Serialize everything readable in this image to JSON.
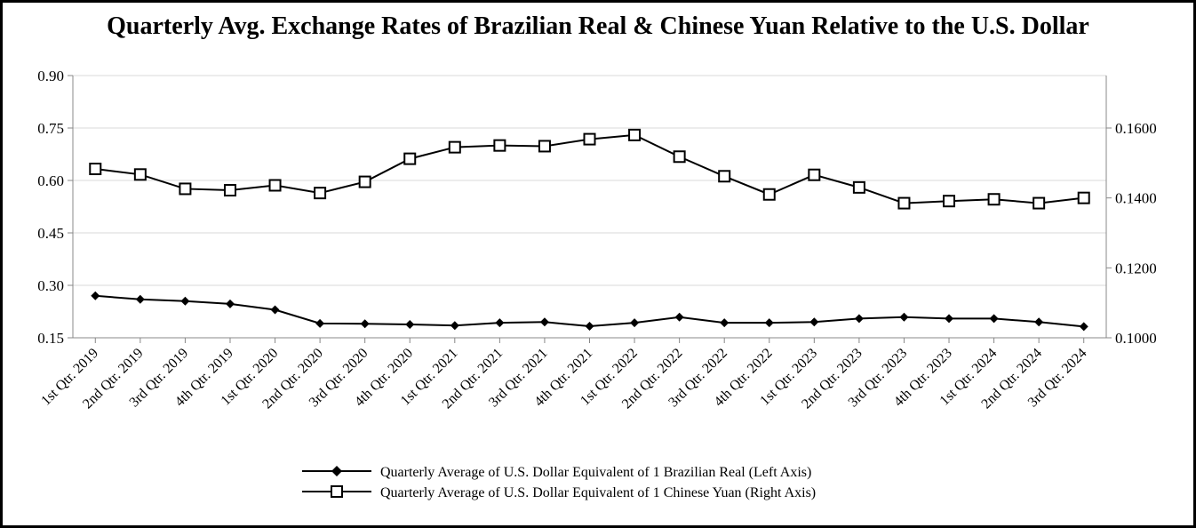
{
  "chart_data": {
    "type": "line",
    "title": "Quarterly Avg. Exchange Rates of Brazilian Real & Chinese Yuan Relative to the U.S. Dollar",
    "categories": [
      "1st Qtr. 2019",
      "2nd Qtr. 2019",
      "3rd Qtr. 2019",
      "4th Qtr. 2019",
      "1st Qtr. 2020",
      "2nd Qtr. 2020",
      "3rd Qtr. 2020",
      "4th Qtr. 2020",
      "1st Qtr. 2021",
      "2nd Qtr. 2021",
      "3rd Qtr. 2021",
      "4th Qtr. 2021",
      "1st Qtr. 2022",
      "2nd Qtr. 2022",
      "3rd Qtr. 2022",
      "4th Qtr. 2022",
      "1st Qtr. 2023",
      "2nd Qtr. 2023",
      "3rd Qtr. 2023",
      "4th Qtr. 2023",
      "1st Qtr. 2024",
      "2nd Qtr. 2024",
      "3rd Qtr. 2024"
    ],
    "left_axis": {
      "ylim": [
        0.15,
        0.9
      ],
      "ticks": [
        "0.15",
        "0.30",
        "0.45",
        "0.60",
        "0.75",
        "0.90"
      ]
    },
    "right_axis": {
      "ylim": [
        0.1,
        0.175
      ],
      "ticks": [
        "0.1000",
        "0.1200",
        "0.1400",
        "0.1600"
      ]
    },
    "series": [
      {
        "name": "Quarterly Average of U.S. Dollar Equivalent of 1 Brazilian Real (Left Axis)",
        "axis": "left",
        "marker": "diamond",
        "values": [
          0.27,
          0.26,
          0.255,
          0.247,
          0.23,
          0.191,
          0.19,
          0.188,
          0.185,
          0.193,
          0.195,
          0.183,
          0.193,
          0.209,
          0.193,
          0.193,
          0.195,
          0.205,
          0.209,
          0.205,
          0.205,
          0.195,
          0.182
        ]
      },
      {
        "name": "Quarterly Average of U.S. Dollar Equivalent of 1 Chinese Yuan (Right Axis)",
        "axis": "right",
        "marker": "square",
        "values": [
          0.1483,
          0.1467,
          0.1426,
          0.1422,
          0.1436,
          0.1414,
          0.1446,
          0.1512,
          0.1545,
          0.155,
          0.1548,
          0.1568,
          0.158,
          0.1518,
          0.1462,
          0.141,
          0.1466,
          0.143,
          0.1385,
          0.1391,
          0.1396,
          0.1385,
          0.14
        ]
      }
    ],
    "grid": true,
    "legend_position": "bottom-center"
  }
}
